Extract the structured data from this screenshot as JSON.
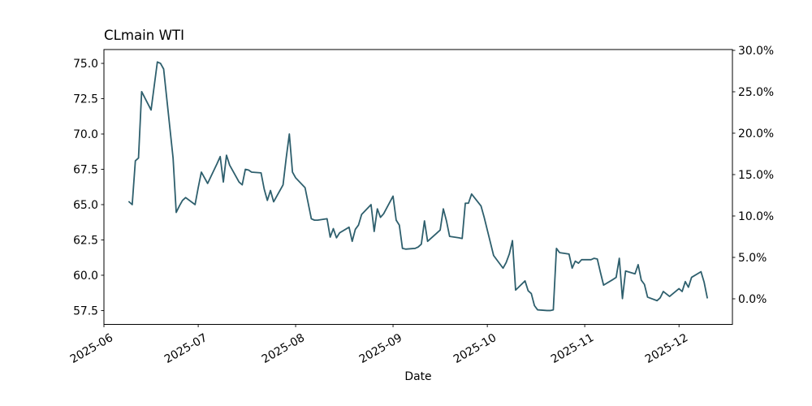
{
  "title": "CLmain WTI",
  "xlabel": "Date",
  "chart_data": {
    "type": "line",
    "title": "CLmain WTI",
    "xlabel": "Date",
    "ylabel_left": "",
    "ylabel_right": "",
    "grid": false,
    "legend": null,
    "line_color": "#2e5f6d",
    "background_color": "#ffffff",
    "xlim": [
      "2025-06-01",
      "2025-12-18"
    ],
    "ylim_left": [
      56.52,
      75.98
    ],
    "ylim_right": [
      -3.09,
      30.1
    ],
    "x_ticks": [
      {
        "label": "2025-06",
        "date": "2025-06-01"
      },
      {
        "label": "2025-07",
        "date": "2025-07-01"
      },
      {
        "label": "2025-08",
        "date": "2025-08-01"
      },
      {
        "label": "2025-09",
        "date": "2025-09-01"
      },
      {
        "label": "2025-10",
        "date": "2025-10-01"
      },
      {
        "label": "2025-11",
        "date": "2025-11-01"
      },
      {
        "label": "2025-12",
        "date": "2025-12-01"
      }
    ],
    "y_left_ticks": [
      {
        "label": "57.5",
        "value": 57.5
      },
      {
        "label": "60.0",
        "value": 60.0
      },
      {
        "label": "62.5",
        "value": 62.5
      },
      {
        "label": "65.0",
        "value": 65.0
      },
      {
        "label": "67.5",
        "value": 67.5
      },
      {
        "label": "70.0",
        "value": 70.0
      },
      {
        "label": "72.5",
        "value": 72.5
      },
      {
        "label": "75.0",
        "value": 75.0
      }
    ],
    "y_right_ticks": [
      {
        "label": "0.0%",
        "value": 0.0
      },
      {
        "label": "5.0%",
        "value": 5.0
      },
      {
        "label": "10.0%",
        "value": 10.0
      },
      {
        "label": "15.0%",
        "value": 15.0
      },
      {
        "label": "20.0%",
        "value": 20.0
      },
      {
        "label": "25.0%",
        "value": 25.0
      },
      {
        "label": "30.0%",
        "value": 30.0
      }
    ],
    "series": [
      {
        "name": "CLmain WTI",
        "color": "#2e5f6d",
        "points": [
          [
            "2025-06-09",
            65.2
          ],
          [
            "2025-06-10",
            65.0
          ],
          [
            "2025-06-11",
            68.1
          ],
          [
            "2025-06-12",
            68.3
          ],
          [
            "2025-06-13",
            73.0
          ],
          [
            "2025-06-16",
            71.7
          ],
          [
            "2025-06-17",
            73.4
          ],
          [
            "2025-06-18",
            75.1
          ],
          [
            "2025-06-19",
            75.0
          ],
          [
            "2025-06-20",
            74.6
          ],
          [
            "2025-06-23",
            68.3
          ],
          [
            "2025-06-24",
            64.45
          ],
          [
            "2025-06-25",
            64.9
          ],
          [
            "2025-06-26",
            65.3
          ],
          [
            "2025-06-27",
            65.5
          ],
          [
            "2025-06-30",
            65.0
          ],
          [
            "2025-07-01",
            66.2
          ],
          [
            "2025-07-02",
            67.3
          ],
          [
            "2025-07-03",
            66.9
          ],
          [
            "2025-07-04",
            66.5
          ],
          [
            "2025-07-07",
            67.9
          ],
          [
            "2025-07-08",
            68.4
          ],
          [
            "2025-07-09",
            66.6
          ],
          [
            "2025-07-10",
            68.5
          ],
          [
            "2025-07-11",
            67.8
          ],
          [
            "2025-07-14",
            66.6
          ],
          [
            "2025-07-15",
            66.4
          ],
          [
            "2025-07-16",
            67.5
          ],
          [
            "2025-07-17",
            67.45
          ],
          [
            "2025-07-18",
            67.3
          ],
          [
            "2025-07-21",
            67.25
          ],
          [
            "2025-07-22",
            66.1
          ],
          [
            "2025-07-23",
            65.3
          ],
          [
            "2025-07-24",
            66.0
          ],
          [
            "2025-07-25",
            65.2
          ],
          [
            "2025-07-28",
            66.4
          ],
          [
            "2025-07-29",
            68.3
          ],
          [
            "2025-07-30",
            70.0
          ],
          [
            "2025-07-31",
            67.3
          ],
          [
            "2025-08-01",
            66.9
          ],
          [
            "2025-08-04",
            66.2
          ],
          [
            "2025-08-05",
            65.1
          ],
          [
            "2025-08-06",
            64.0
          ],
          [
            "2025-08-07",
            63.9
          ],
          [
            "2025-08-08",
            63.9
          ],
          [
            "2025-08-11",
            64.0
          ],
          [
            "2025-08-12",
            62.7
          ],
          [
            "2025-08-13",
            63.3
          ],
          [
            "2025-08-14",
            62.65
          ],
          [
            "2025-08-15",
            63.0
          ],
          [
            "2025-08-18",
            63.4
          ],
          [
            "2025-08-19",
            62.4
          ],
          [
            "2025-08-20",
            63.25
          ],
          [
            "2025-08-21",
            63.55
          ],
          [
            "2025-08-22",
            64.3
          ],
          [
            "2025-08-25",
            65.0
          ],
          [
            "2025-08-26",
            63.1
          ],
          [
            "2025-08-27",
            64.7
          ],
          [
            "2025-08-28",
            64.1
          ],
          [
            "2025-08-29",
            64.35
          ],
          [
            "2025-09-01",
            65.6
          ],
          [
            "2025-09-02",
            63.9
          ],
          [
            "2025-09-03",
            63.55
          ],
          [
            "2025-09-04",
            61.9
          ],
          [
            "2025-09-05",
            61.85
          ],
          [
            "2025-09-08",
            61.9
          ],
          [
            "2025-09-09",
            62.0
          ],
          [
            "2025-09-10",
            62.2
          ],
          [
            "2025-09-11",
            63.85
          ],
          [
            "2025-09-12",
            62.4
          ],
          [
            "2025-09-15",
            63.0
          ],
          [
            "2025-09-16",
            63.2
          ],
          [
            "2025-09-17",
            64.7
          ],
          [
            "2025-09-18",
            63.85
          ],
          [
            "2025-09-19",
            62.75
          ],
          [
            "2025-09-22",
            62.65
          ],
          [
            "2025-09-23",
            62.6
          ],
          [
            "2025-09-24",
            65.1
          ],
          [
            "2025-09-25",
            65.1
          ],
          [
            "2025-09-26",
            65.75
          ],
          [
            "2025-09-29",
            64.9
          ],
          [
            "2025-09-30",
            64.1
          ],
          [
            "2025-10-01",
            63.2
          ],
          [
            "2025-10-02",
            62.3
          ],
          [
            "2025-10-03",
            61.4
          ],
          [
            "2025-10-06",
            60.5
          ],
          [
            "2025-10-07",
            60.9
          ],
          [
            "2025-10-08",
            61.5
          ],
          [
            "2025-10-09",
            62.45
          ],
          [
            "2025-10-10",
            58.95
          ],
          [
            "2025-10-13",
            59.6
          ],
          [
            "2025-10-14",
            58.9
          ],
          [
            "2025-10-15",
            58.7
          ],
          [
            "2025-10-16",
            57.85
          ],
          [
            "2025-10-17",
            57.55
          ],
          [
            "2025-10-20",
            57.5
          ],
          [
            "2025-10-21",
            57.5
          ],
          [
            "2025-10-22",
            57.55
          ],
          [
            "2025-10-23",
            61.9
          ],
          [
            "2025-10-24",
            61.6
          ],
          [
            "2025-10-27",
            61.5
          ],
          [
            "2025-10-28",
            60.5
          ],
          [
            "2025-10-29",
            61.0
          ],
          [
            "2025-10-30",
            60.85
          ],
          [
            "2025-10-31",
            61.1
          ],
          [
            "2025-11-03",
            61.1
          ],
          [
            "2025-11-04",
            61.2
          ],
          [
            "2025-11-05",
            61.15
          ],
          [
            "2025-11-06",
            60.2
          ],
          [
            "2025-11-07",
            59.3
          ],
          [
            "2025-11-10",
            59.7
          ],
          [
            "2025-11-11",
            59.85
          ],
          [
            "2025-11-12",
            61.2
          ],
          [
            "2025-11-13",
            58.35
          ],
          [
            "2025-11-14",
            60.3
          ],
          [
            "2025-11-17",
            60.1
          ],
          [
            "2025-11-18",
            60.75
          ],
          [
            "2025-11-19",
            59.65
          ],
          [
            "2025-11-20",
            59.35
          ],
          [
            "2025-11-21",
            58.45
          ],
          [
            "2025-11-24",
            58.2
          ],
          [
            "2025-11-25",
            58.4
          ],
          [
            "2025-11-26",
            58.85
          ],
          [
            "2025-11-28",
            58.5
          ],
          [
            "2025-12-01",
            59.05
          ],
          [
            "2025-12-02",
            58.85
          ],
          [
            "2025-12-03",
            59.55
          ],
          [
            "2025-12-04",
            59.15
          ],
          [
            "2025-12-05",
            59.85
          ],
          [
            "2025-12-08",
            60.25
          ],
          [
            "2025-12-09",
            59.5
          ],
          [
            "2025-12-10",
            58.4
          ]
        ]
      }
    ]
  }
}
